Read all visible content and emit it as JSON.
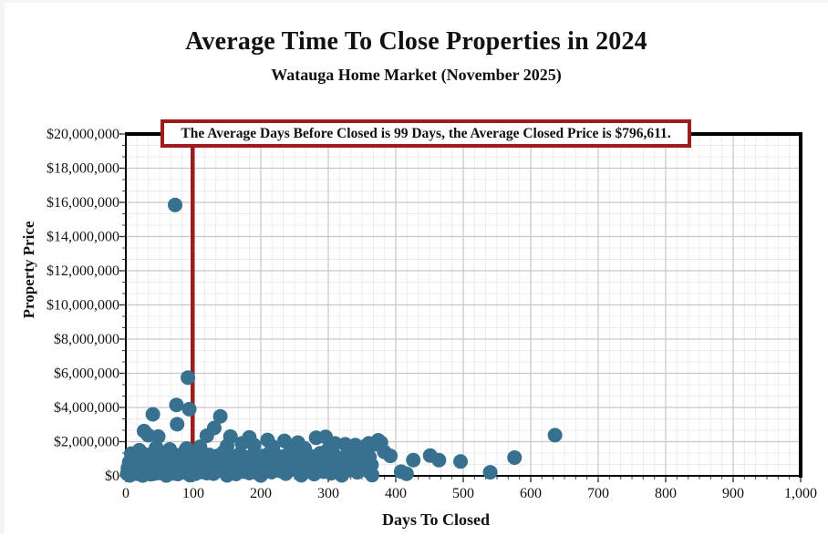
{
  "header": {
    "title": "Average Time To Close Properties in 2024",
    "subtitle": "Watauga Home Market (November 2025)"
  },
  "annotation": {
    "text": "The Average Days Before Closed is 99 Days, the Average Closed Price is $796,611.",
    "avg_days": 99,
    "avg_price": "$796,611",
    "border_color": "#9e1c1c"
  },
  "chart_data": {
    "type": "scatter",
    "title": "Average Time To Close Properties in 2024",
    "subtitle": "Watauga Home Market (November 2025)",
    "xlabel": "Days To Closed",
    "ylabel": "Property Price",
    "xlim": [
      0,
      1000
    ],
    "ylim": [
      0,
      20000000
    ],
    "x_tick_values": [
      0,
      100,
      200,
      300,
      400,
      500,
      600,
      700,
      800,
      900,
      1000
    ],
    "x_tick_labels": [
      "0",
      "100",
      "200",
      "300",
      "400",
      "500",
      "600",
      "700",
      "800",
      "900",
      "1,000"
    ],
    "y_tick_values": [
      0,
      2000000,
      4000000,
      6000000,
      8000000,
      10000000,
      12000000,
      14000000,
      16000000,
      18000000,
      20000000
    ],
    "y_tick_labels": [
      "$0",
      "$2,000,000",
      "$4,000,000",
      "$6,000,000",
      "$8,000,000",
      "$10,000,000",
      "$12,000,000",
      "$14,000,000",
      "$16,000,000",
      "$18,000,000",
      "$20,000,000"
    ],
    "legend": null,
    "grid": {
      "minor_color": "#ececec",
      "major_color": "#c6c6c6",
      "minor_x_divisions": 6,
      "minor_y_divisions": 3
    },
    "marker_color": "#38708f",
    "marker_radius": 8,
    "avg_line": {
      "x": 99,
      "color": "#9e1c1c",
      "width": 4.5
    },
    "points": [
      [
        73,
        15850000
      ],
      [
        92,
        5750000
      ],
      [
        75,
        4150000
      ],
      [
        94,
        3900000
      ],
      [
        40,
        3600000
      ],
      [
        140,
        3480000
      ],
      [
        76,
        3020000
      ],
      [
        131,
        2800000
      ],
      [
        27,
        2620000
      ],
      [
        33,
        2380000
      ],
      [
        48,
        2300000
      ],
      [
        120,
        2350000
      ],
      [
        155,
        2300000
      ],
      [
        183,
        2250000
      ],
      [
        282,
        2230000
      ],
      [
        296,
        2280000
      ],
      [
        210,
        2100000
      ],
      [
        235,
        2050000
      ],
      [
        374,
        2080000
      ],
      [
        360,
        1900000
      ],
      [
        370,
        1850000
      ],
      [
        378,
        1950000
      ],
      [
        392,
        1170000
      ],
      [
        383,
        1400000
      ],
      [
        408,
        250000
      ],
      [
        416,
        120000
      ],
      [
        426,
        920000
      ],
      [
        451,
        1190000
      ],
      [
        464,
        920000
      ],
      [
        496,
        840000
      ],
      [
        540,
        210000
      ],
      [
        576,
        1070000
      ],
      [
        636,
        2380000
      ],
      [
        255,
        1950000
      ],
      [
        310,
        1900000
      ],
      [
        325,
        1850000
      ],
      [
        340,
        1800000
      ],
      [
        355,
        1750000
      ],
      [
        150,
        1750000
      ],
      [
        172,
        1900000
      ],
      [
        190,
        1800000
      ],
      [
        218,
        1700000
      ],
      [
        244,
        1650000
      ],
      [
        265,
        1600000
      ],
      [
        300,
        1550000
      ],
      [
        330,
        1500000
      ],
      [
        90,
        1600000
      ],
      [
        110,
        1700000
      ],
      [
        65,
        1550000
      ],
      [
        45,
        1650000
      ],
      [
        20,
        1500000
      ],
      [
        8,
        1300000
      ],
      [
        6,
        30000
      ],
      [
        25,
        20000
      ],
      [
        60,
        25000
      ],
      [
        95,
        40000
      ],
      [
        150,
        30000
      ],
      [
        200,
        20000
      ],
      [
        260,
        35000
      ],
      [
        320,
        30000
      ],
      [
        365,
        45000
      ],
      [
        2,
        120000
      ],
      [
        3,
        450000
      ],
      [
        5,
        250000
      ],
      [
        5,
        800000
      ],
      [
        7,
        150000
      ],
      [
        8,
        600000
      ],
      [
        9,
        950000
      ],
      [
        10,
        300000
      ],
      [
        11,
        700000
      ],
      [
        12,
        180000
      ],
      [
        13,
        520000
      ],
      [
        14,
        1050000
      ],
      [
        15,
        380000
      ],
      [
        16,
        850000
      ],
      [
        17,
        120000
      ],
      [
        18,
        640000
      ],
      [
        19,
        990000
      ],
      [
        20,
        260000
      ],
      [
        21,
        740000
      ],
      [
        22,
        460000
      ],
      [
        23,
        1150000
      ],
      [
        24,
        90000
      ],
      [
        25,
        580000
      ],
      [
        26,
        880000
      ],
      [
        27,
        330000
      ],
      [
        28,
        1250000
      ],
      [
        29,
        690000
      ],
      [
        30,
        150000
      ],
      [
        30,
        980000
      ],
      [
        31,
        420000
      ],
      [
        32,
        760000
      ],
      [
        33,
        200000
      ],
      [
        34,
        1100000
      ],
      [
        35,
        540000
      ],
      [
        36,
        870000
      ],
      [
        37,
        95000
      ],
      [
        38,
        660000
      ],
      [
        39,
        1300000
      ],
      [
        40,
        350000
      ],
      [
        41,
        780000
      ],
      [
        42,
        130000
      ],
      [
        43,
        940000
      ],
      [
        44,
        480000
      ],
      [
        45,
        1180000
      ],
      [
        46,
        280000
      ],
      [
        47,
        820000
      ],
      [
        48,
        590000
      ],
      [
        49,
        1420000
      ],
      [
        50,
        170000
      ],
      [
        51,
        710000
      ],
      [
        52,
        1020000
      ],
      [
        53,
        390000
      ],
      [
        54,
        860000
      ],
      [
        55,
        240000
      ],
      [
        56,
        1160000
      ],
      [
        57,
        630000
      ],
      [
        58,
        100000
      ],
      [
        59,
        920000
      ],
      [
        60,
        470000
      ],
      [
        61,
        1350000
      ],
      [
        62,
        750000
      ],
      [
        64,
        210000
      ],
      [
        65,
        1080000
      ],
      [
        67,
        560000
      ],
      [
        68,
        890000
      ],
      [
        70,
        140000
      ],
      [
        71,
        680000
      ],
      [
        72,
        1240000
      ],
      [
        74,
        370000
      ],
      [
        76,
        800000
      ],
      [
        77,
        110000
      ],
      [
        79,
        960000
      ],
      [
        80,
        500000
      ],
      [
        82,
        1190000
      ],
      [
        83,
        300000
      ],
      [
        85,
        840000
      ],
      [
        86,
        610000
      ],
      [
        88,
        1450000
      ],
      [
        89,
        190000
      ],
      [
        91,
        730000
      ],
      [
        93,
        1040000
      ],
      [
        95,
        410000
      ],
      [
        96,
        880000
      ],
      [
        98,
        260000
      ],
      [
        99,
        1130000
      ],
      [
        101,
        650000
      ],
      [
        103,
        120000
      ],
      [
        104,
        900000
      ],
      [
        106,
        490000
      ],
      [
        108,
        1310000
      ],
      [
        110,
        770000
      ],
      [
        112,
        230000
      ],
      [
        114,
        1060000
      ],
      [
        116,
        580000
      ],
      [
        118,
        910000
      ],
      [
        120,
        160000
      ],
      [
        122,
        700000
      ],
      [
        124,
        1220000
      ],
      [
        126,
        400000
      ],
      [
        128,
        830000
      ],
      [
        130,
        130000
      ],
      [
        132,
        980000
      ],
      [
        134,
        530000
      ],
      [
        136,
        1170000
      ],
      [
        138,
        320000
      ],
      [
        141,
        860000
      ],
      [
        143,
        620000
      ],
      [
        145,
        1400000
      ],
      [
        147,
        200000
      ],
      [
        149,
        750000
      ],
      [
        151,
        1010000
      ],
      [
        153,
        430000
      ],
      [
        155,
        890000
      ],
      [
        157,
        280000
      ],
      [
        159,
        1140000
      ],
      [
        161,
        670000
      ],
      [
        163,
        110000
      ],
      [
        165,
        930000
      ],
      [
        167,
        510000
      ],
      [
        169,
        1280000
      ],
      [
        171,
        790000
      ],
      [
        174,
        250000
      ],
      [
        176,
        1090000
      ],
      [
        178,
        600000
      ],
      [
        181,
        920000
      ],
      [
        183,
        170000
      ],
      [
        186,
        720000
      ],
      [
        188,
        1210000
      ],
      [
        191,
        390000
      ],
      [
        193,
        850000
      ],
      [
        196,
        140000
      ],
      [
        198,
        970000
      ],
      [
        201,
        550000
      ],
      [
        203,
        1160000
      ],
      [
        206,
        310000
      ],
      [
        209,
        880000
      ],
      [
        211,
        640000
      ],
      [
        214,
        1380000
      ],
      [
        216,
        220000
      ],
      [
        219,
        760000
      ],
      [
        221,
        1030000
      ],
      [
        224,
        440000
      ],
      [
        226,
        900000
      ],
      [
        229,
        290000
      ],
      [
        231,
        1120000
      ],
      [
        234,
        660000
      ],
      [
        237,
        130000
      ],
      [
        239,
        940000
      ],
      [
        242,
        520000
      ],
      [
        245,
        1260000
      ],
      [
        247,
        360000
      ],
      [
        250,
        810000
      ],
      [
        253,
        590000
      ],
      [
        255,
        1440000
      ],
      [
        258,
        180000
      ],
      [
        261,
        740000
      ],
      [
        263,
        1050000
      ],
      [
        266,
        420000
      ],
      [
        269,
        870000
      ],
      [
        271,
        270000
      ],
      [
        274,
        1150000
      ],
      [
        277,
        630000
      ],
      [
        279,
        105000
      ],
      [
        282,
        910000
      ],
      [
        285,
        480000
      ],
      [
        288,
        1320000
      ],
      [
        290,
        700000
      ],
      [
        293,
        240000
      ],
      [
        296,
        1000000
      ],
      [
        298,
        560000
      ],
      [
        301,
        830000
      ],
      [
        304,
        150000
      ],
      [
        307,
        690000
      ],
      [
        310,
        1180000
      ],
      [
        313,
        380000
      ],
      [
        316,
        790000
      ],
      [
        319,
        120000
      ],
      [
        322,
        950000
      ],
      [
        325,
        540000
      ],
      [
        328,
        1230000
      ],
      [
        331,
        330000
      ],
      [
        334,
        800000
      ],
      [
        337,
        620000
      ],
      [
        340,
        1420000
      ],
      [
        343,
        210000
      ],
      [
        346,
        730000
      ],
      [
        349,
        1060000
      ],
      [
        352,
        450000
      ],
      [
        355,
        880000
      ],
      [
        358,
        300000
      ],
      [
        361,
        1100000
      ],
      [
        364,
        640000
      ]
    ]
  }
}
